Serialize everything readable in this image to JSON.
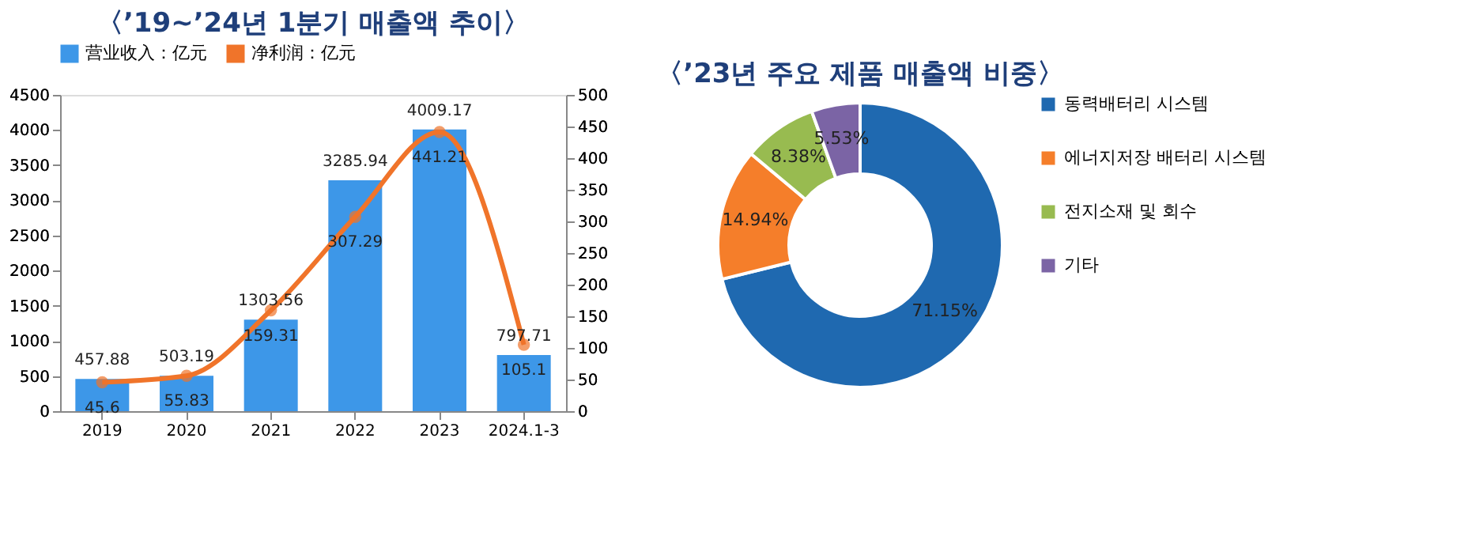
{
  "chart_data": [
    {
      "type": "bar",
      "title": "〈’19~’24년 1분기 매출액 추이〉",
      "categories": [
        "2019",
        "2020",
        "2021",
        "2022",
        "2023",
        "2024.1-3"
      ],
      "series": [
        {
          "name": "营业收入：亿元",
          "type": "bar",
          "color": "#3d97e8",
          "values": [
            457.88,
            503.19,
            1303.56,
            3285.94,
            4009.17,
            797.71
          ]
        },
        {
          "name": "净利润：亿元",
          "type": "line",
          "axis": "y2",
          "color": "#f0742a",
          "values": [
            45.6,
            55.83,
            159.31,
            307.29,
            441.21,
            105.1
          ]
        }
      ],
      "ylim": [
        0,
        4500
      ],
      "yticks": [
        0,
        500,
        1000,
        1500,
        2000,
        2500,
        3000,
        3500,
        4000,
        4500
      ],
      "y2lim": [
        0,
        500
      ],
      "y2ticks": [
        0,
        50,
        100,
        150,
        200,
        250,
        300,
        350,
        400,
        450,
        500
      ],
      "data_labels": true,
      "legend": "top",
      "grid": false,
      "marker": "circle",
      "line_style": "solid"
    },
    {
      "type": "donut",
      "title": "〈’23년 주요 제품 매출액 비중〉",
      "categories": [
        "동력배터리 시스템",
        "에너지저장 배터리 시스템",
        "전지소재 및 회수",
        "기타"
      ],
      "values": [
        71.15,
        14.94,
        8.38,
        5.53
      ],
      "colors": [
        "#1f69b0",
        "#f57e2a",
        "#98bb50",
        "#7b64a5"
      ],
      "value_labels": [
        "71.15%",
        "14.94%",
        "8.38%",
        "5.53%"
      ],
      "legend": "right"
    }
  ]
}
